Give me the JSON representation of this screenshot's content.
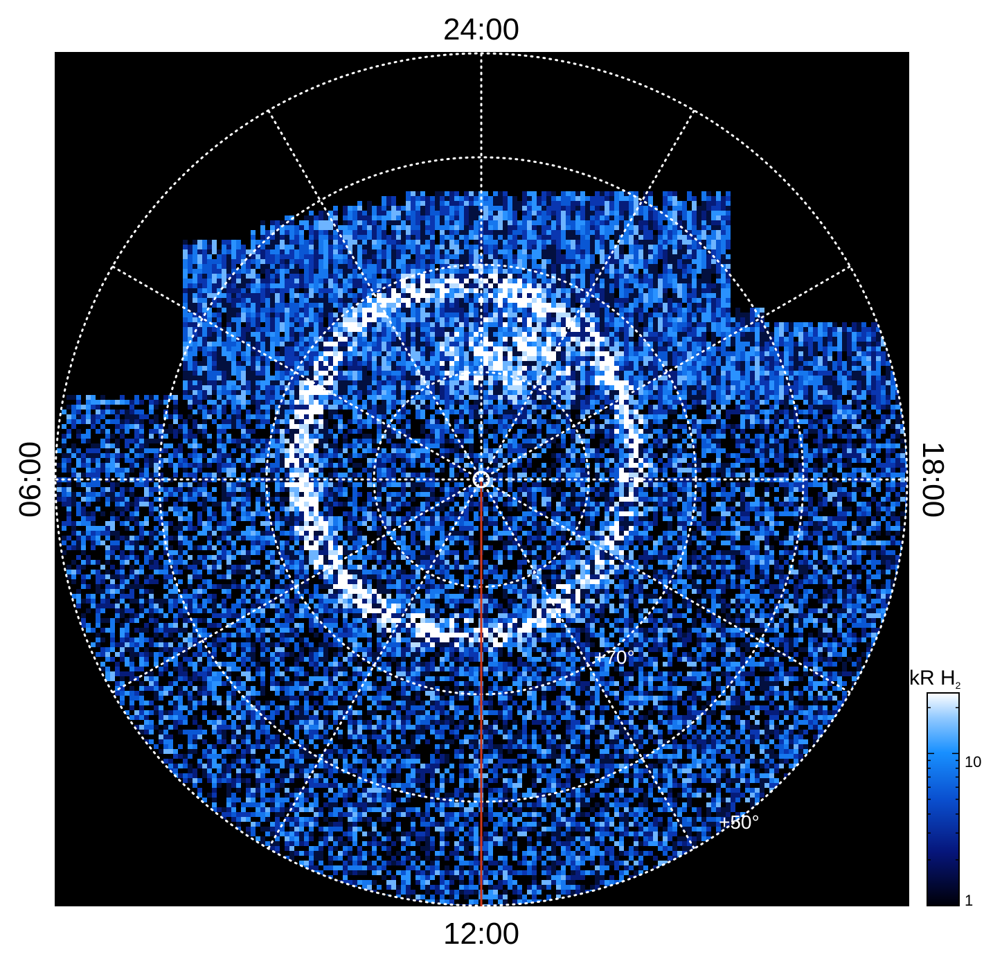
{
  "local_time_labels": {
    "top": "24:00",
    "bottom": "12:00",
    "left": "06:00",
    "right": "18:00"
  },
  "latitude_labels": {
    "inner": "+70°",
    "outer": "+50°"
  },
  "colorbar": {
    "unit": "kR H",
    "unit_subscript": "2",
    "tick_high": "10",
    "tick_low": "1",
    "scale": "log",
    "range": [
      1,
      25
    ]
  },
  "colors": {
    "background": "#000000",
    "grid": "#ffffff",
    "meridian_line": "#d0391c",
    "colormap_low": "#000010",
    "colormap_mid": "#0a64d8",
    "colormap_high": "#ffffff"
  }
}
